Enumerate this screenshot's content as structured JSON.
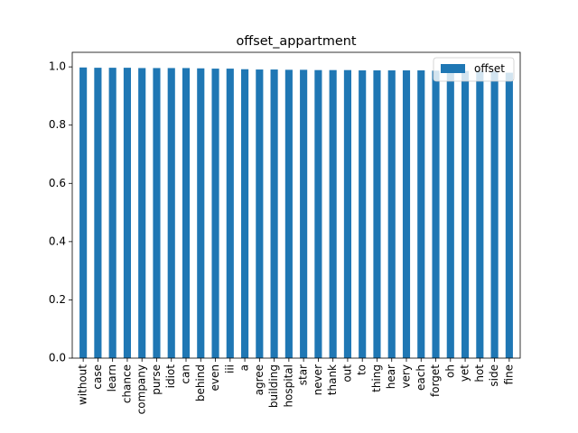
{
  "chart_data": {
    "type": "bar",
    "title": "offset_appartment",
    "xlabel": "",
    "ylabel": "",
    "ylim": [
      0,
      1.05
    ],
    "yticks": [
      "0.0",
      "0.2",
      "0.4",
      "0.6",
      "0.8",
      "1.0"
    ],
    "categories": [
      "without",
      "case",
      "learn",
      "chance",
      "company",
      "purse",
      "idiot",
      "can",
      "behind",
      "even",
      "iii",
      "a",
      "agree",
      "building",
      "hospital",
      "star",
      "never",
      "thank",
      "out",
      "to",
      "thing",
      "hear",
      "very",
      "each",
      "forget",
      "oh",
      "yet",
      "hot",
      "side",
      "fine"
    ],
    "series": [
      {
        "name": "offset",
        "color": "#1f77b4",
        "values": [
          0.998,
          0.997,
          0.997,
          0.997,
          0.996,
          0.996,
          0.996,
          0.996,
          0.995,
          0.994,
          0.994,
          0.992,
          0.991,
          0.991,
          0.99,
          0.99,
          0.989,
          0.989,
          0.989,
          0.988,
          0.988,
          0.988,
          0.988,
          0.988,
          0.987,
          0.987,
          0.986,
          0.986,
          0.985,
          0.98
        ]
      }
    ],
    "legend": {
      "position": "top-right"
    },
    "grid": false
  }
}
